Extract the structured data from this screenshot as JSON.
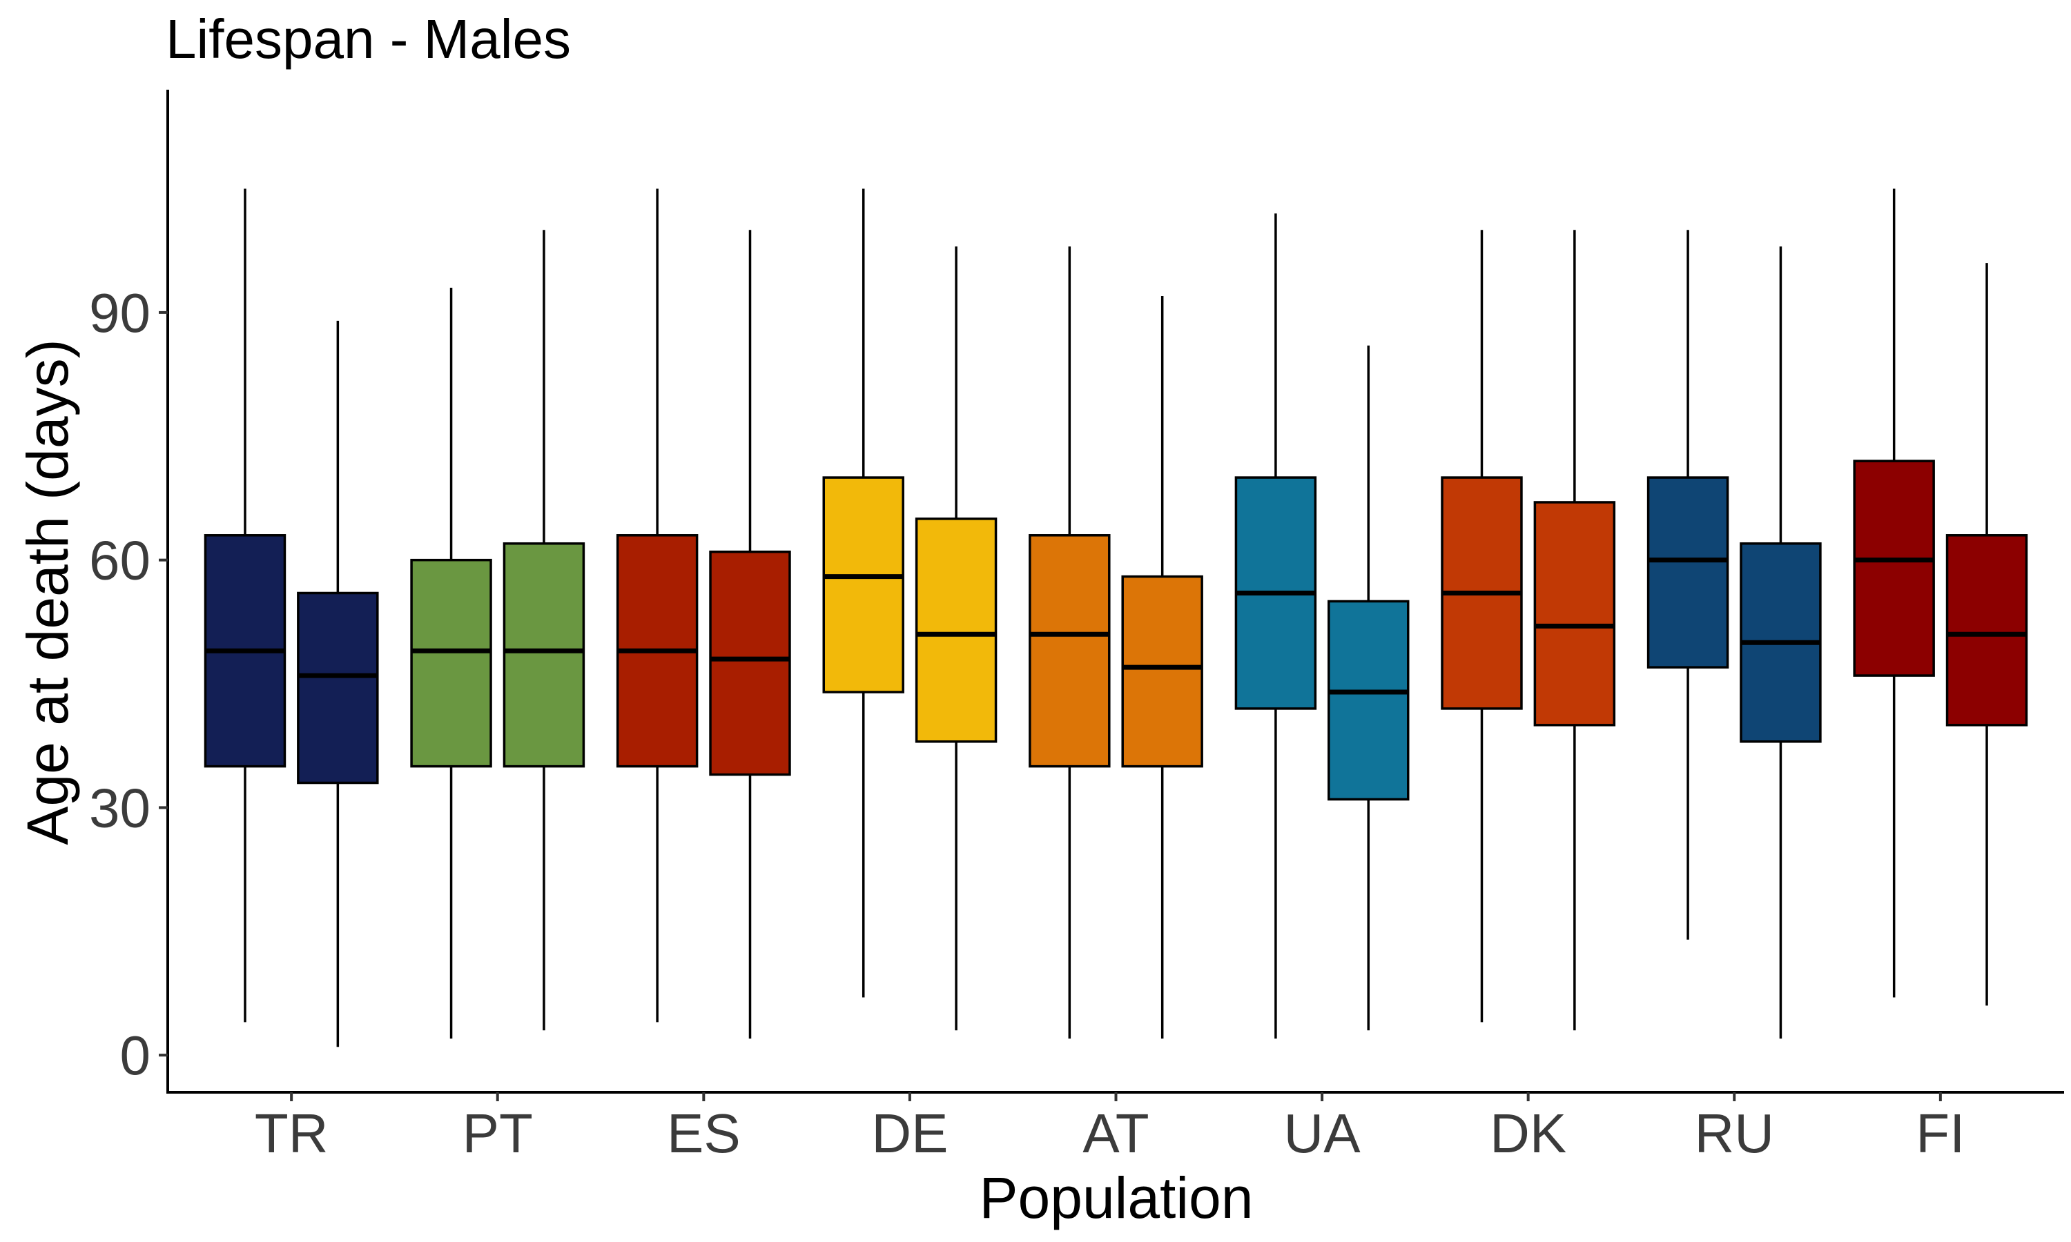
{
  "chart_data": {
    "type": "boxplot",
    "title": "Lifespan - Males",
    "xlabel": "Population",
    "ylabel": "Age at death (days)",
    "ylim": [
      -4.5,
      117
    ],
    "yticks": [
      0,
      30,
      60,
      90
    ],
    "grid": false,
    "legend": "none",
    "categories": [
      "TR",
      "PT",
      "ES",
      "DE",
      "AT",
      "UA",
      "DK",
      "RU",
      "FI"
    ],
    "groups": [
      {
        "category": "TR",
        "color": "#131f55",
        "boxes": [
          {
            "min": 4,
            "q1": 35,
            "median": 49,
            "q3": 63,
            "max": 105
          },
          {
            "min": 1,
            "q1": 33,
            "median": 46,
            "q3": 56,
            "max": 89
          }
        ]
      },
      {
        "category": "PT",
        "color": "#6a9741",
        "boxes": [
          {
            "min": 2,
            "q1": 35,
            "median": 49,
            "q3": 60,
            "max": 93
          },
          {
            "min": 3,
            "q1": 35,
            "median": 49,
            "q3": 62,
            "max": 100
          }
        ]
      },
      {
        "category": "ES",
        "color": "#a81e00",
        "boxes": [
          {
            "min": 4,
            "q1": 35,
            "median": 49,
            "q3": 63,
            "max": 105
          },
          {
            "min": 2,
            "q1": 34,
            "median": 48,
            "q3": 61,
            "max": 100
          }
        ]
      },
      {
        "category": "DE",
        "color": "#f2b90a",
        "boxes": [
          {
            "min": 7,
            "q1": 44,
            "median": 58,
            "q3": 70,
            "max": 105
          },
          {
            "min": 3,
            "q1": 38,
            "median": 51,
            "q3": 65,
            "max": 98
          }
        ]
      },
      {
        "category": "AT",
        "color": "#dc7507",
        "boxes": [
          {
            "min": 2,
            "q1": 35,
            "median": 51,
            "q3": 63,
            "max": 98
          },
          {
            "min": 2,
            "q1": 35,
            "median": 47,
            "q3": 58,
            "max": 92
          }
        ]
      },
      {
        "category": "UA",
        "color": "#107499",
        "boxes": [
          {
            "min": 2,
            "q1": 42,
            "median": 56,
            "q3": 70,
            "max": 102
          },
          {
            "min": 3,
            "q1": 31,
            "median": 44,
            "q3": 55,
            "max": 86
          }
        ]
      },
      {
        "category": "DK",
        "color": "#c13905",
        "boxes": [
          {
            "min": 4,
            "q1": 42,
            "median": 56,
            "q3": 70,
            "max": 100
          },
          {
            "min": 3,
            "q1": 40,
            "median": 52,
            "q3": 67,
            "max": 100
          }
        ]
      },
      {
        "category": "RU",
        "color": "#0f4574",
        "boxes": [
          {
            "min": 14,
            "q1": 47,
            "median": 60,
            "q3": 70,
            "max": 100
          },
          {
            "min": 2,
            "q1": 38,
            "median": 50,
            "q3": 62,
            "max": 98
          }
        ]
      },
      {
        "category": "FI",
        "color": "#8c0000",
        "boxes": [
          {
            "min": 7,
            "q1": 46,
            "median": 60,
            "q3": 72,
            "max": 105
          },
          {
            "min": 6,
            "q1": 40,
            "median": 51,
            "q3": 63,
            "max": 96
          }
        ]
      }
    ]
  }
}
